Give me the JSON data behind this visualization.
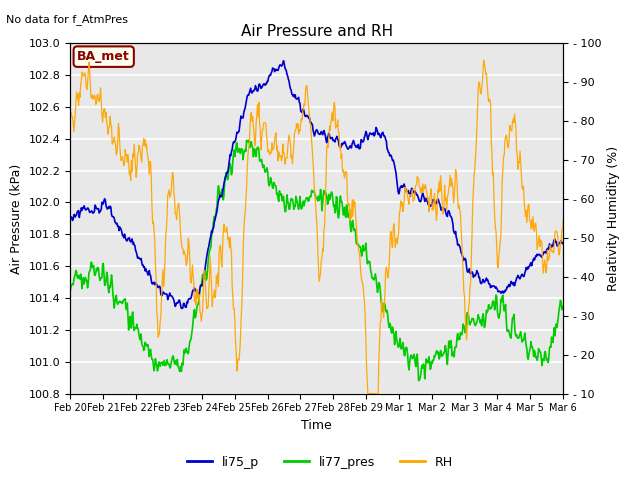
{
  "title": "Air Pressure and RH",
  "top_left_text": "No data for f_AtmPres",
  "box_label": "BA_met",
  "xlabel": "Time",
  "ylabel_left": "Air Pressure (kPa)",
  "ylabel_right": "Relativity Humidity (%)",
  "ylim_left": [
    100.8,
    103.0
  ],
  "ylim_right": [
    10,
    100
  ],
  "yticks_left": [
    100.8,
    101.0,
    101.2,
    101.4,
    101.6,
    101.8,
    102.0,
    102.2,
    102.4,
    102.6,
    102.8,
    103.0
  ],
  "yticks_right": [
    10,
    20,
    30,
    40,
    50,
    60,
    70,
    80,
    90,
    100
  ],
  "xtick_labels": [
    "Feb 20",
    "Feb 21",
    "Feb 22",
    "Feb 23",
    "Feb 24",
    "Feb 25",
    "Feb 26",
    "Feb 27",
    "Feb 28",
    "Feb 29",
    "Mar 1",
    "Mar 2",
    "Mar 3",
    "Mar 4",
    "Mar 5",
    "Mar 6"
  ],
  "color_blue": "#0000CC",
  "color_green": "#00CC00",
  "color_orange": "#FFA500",
  "background_color": "#E8E8E8",
  "legend_labels": [
    "li75_p",
    "li77_pres",
    "RH"
  ]
}
